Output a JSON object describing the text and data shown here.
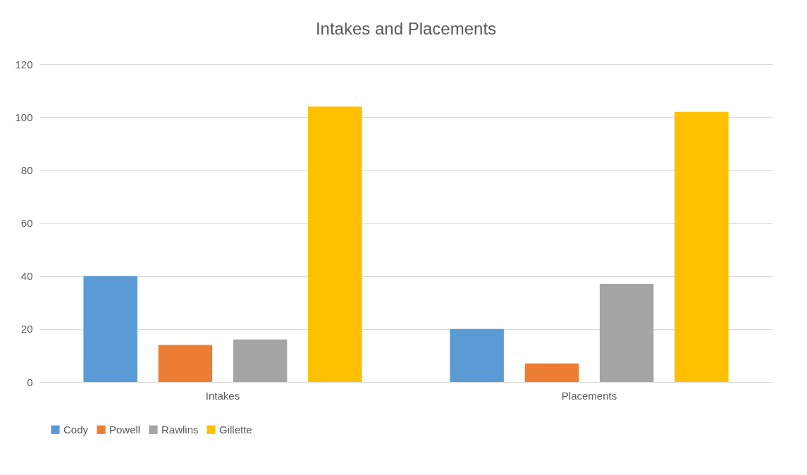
{
  "chart_data": {
    "type": "bar",
    "title": "Intakes and Placements",
    "categories": [
      "Intakes",
      "Placements"
    ],
    "series": [
      {
        "name": "Cody",
        "color": "#5b9bd5",
        "values": [
          40,
          20
        ]
      },
      {
        "name": "Powell",
        "color": "#ed7d31",
        "values": [
          14,
          7
        ]
      },
      {
        "name": "Rawlins",
        "color": "#a5a5a5",
        "values": [
          16,
          37
        ]
      },
      {
        "name": "Gillette",
        "color": "#ffc000",
        "values": [
          104,
          102
        ]
      }
    ],
    "ylim": [
      0,
      120
    ],
    "yticks": [
      0,
      20,
      40,
      60,
      80,
      100,
      120
    ],
    "grid": "y",
    "legend": "bottom"
  }
}
